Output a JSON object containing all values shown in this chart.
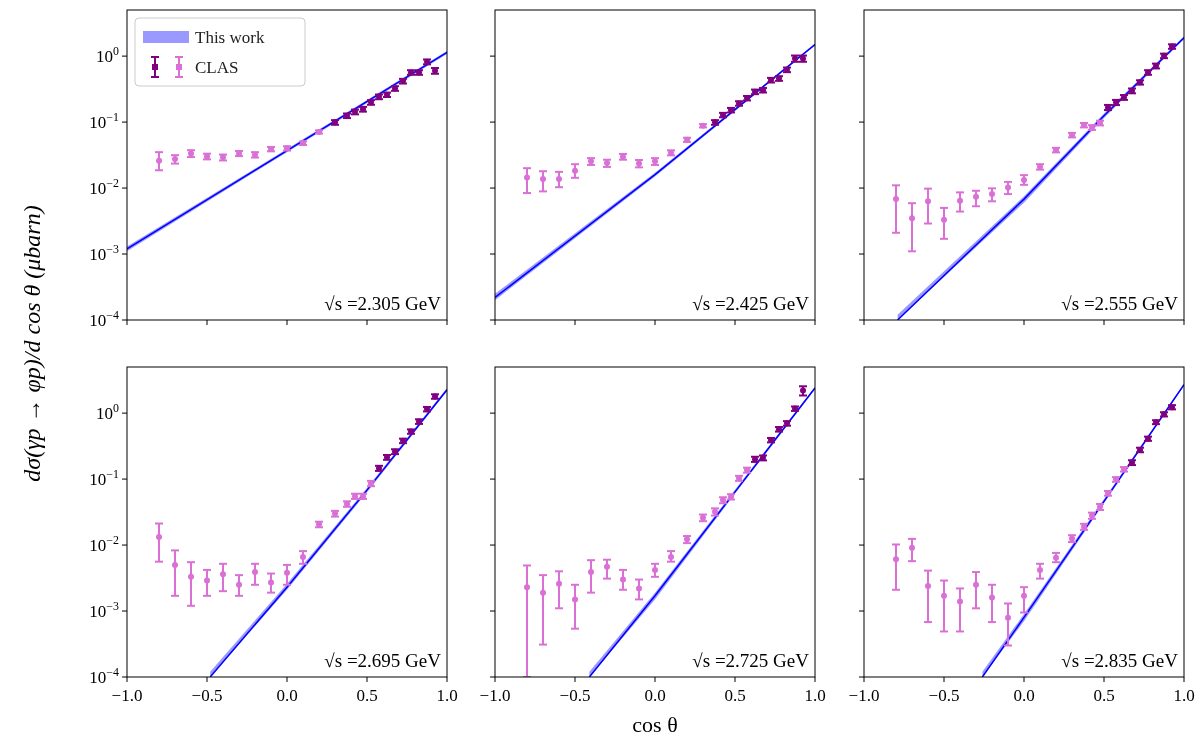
{
  "chart_data": [
    {
      "type": "scatter",
      "ylabel": "dσ(γp → φp)/d cos θ (μbarn)",
      "log": "y",
      "xlim": [
        -1,
        1
      ],
      "ylim": [
        0.0001,
        5
      ],
      "legend": "top left",
      "tick_labels": "y",
      "xticks": [
        {
          "value": -1,
          "label": null
        },
        {
          "value": -0.5,
          "label": null
        },
        {
          "value": 0,
          "label": null
        },
        {
          "value": 0.5,
          "label": null
        },
        {
          "value": 1,
          "label": null
        }
      ],
      "yticks": [
        {
          "value": 0.0001,
          "label": "10$^{−4}$"
        },
        {
          "value": 0.001,
          "label": "10$^{−3}$"
        },
        {
          "value": 0.01,
          "label": "10$^{−2}$"
        },
        {
          "value": 0.1,
          "label": "10$^{−1}$"
        },
        {
          "value": 1,
          "label": "10$^{0}$"
        }
      ],
      "annotations": [
        "√s =2.305 GeV"
      ],
      "series": [
        {
          "type": "line",
          "name": "This work",
          "color": "#0000ff",
          "x": [
            -1,
            0,
            1
          ],
          "values": [
            0.0012,
            0.037,
            1.14
          ],
          "lower": [
            0.0011,
            0.035,
            1.08
          ],
          "upper": [
            0.0013,
            0.039,
            1.2
          ]
        },
        {
          "name": "CLAS",
          "marker": "circle",
          "color": "#da70d6",
          "x": [
            -0.8,
            -0.7,
            -0.6,
            -0.5,
            -0.4,
            -0.3,
            -0.2,
            -0.1,
            0,
            0.1,
            0.2
          ],
          "values": [
            0.026,
            0.0275,
            0.0335,
            0.0302,
            0.0292,
            0.0335,
            0.032,
            0.039,
            0.04,
            0.048,
            0.071
          ],
          "errors": [
            [
              0.0186,
              0.035
            ],
            0.004,
            0.004,
            0.003,
            0.003,
            0.003,
            0.003,
            0.003,
            0.003,
            0.003,
            0.004
          ]
        },
        {
          "marker": "circle",
          "color": "#800080",
          "x": [
            0.3,
            0.375,
            0.425,
            0.475,
            0.525,
            0.575,
            0.625,
            0.675,
            0.725,
            0.775,
            0.825,
            0.875,
            0.925
          ],
          "values": [
            0.099,
            0.125,
            0.143,
            0.157,
            0.199,
            0.242,
            0.26,
            0.324,
            0.418,
            0.566,
            0.566,
            0.82,
            0.6
          ],
          "errors": [
            0.008,
            0.01,
            0.012,
            0.013,
            0.016,
            0.02,
            0.02,
            0.026,
            0.034,
            0.045,
            0.045,
            0.07,
            0.06
          ]
        }
      ]
    },
    {
      "type": "scatter",
      "log": "y",
      "xlim": [
        -1,
        1
      ],
      "ylim": [
        0.0001,
        5
      ],
      "tick_labels": false,
      "xticks": [
        {
          "value": -1,
          "label": null
        },
        {
          "value": -0.5,
          "label": null
        },
        {
          "value": 0,
          "label": null
        },
        {
          "value": 0.5,
          "label": null
        },
        {
          "value": 1,
          "label": null
        }
      ],
      "yticks": [
        {
          "value": 0.0001,
          "label": null
        },
        {
          "value": 0.001,
          "label": null
        },
        {
          "value": 0.01,
          "label": null
        },
        {
          "value": 0.1,
          "label": null
        },
        {
          "value": 1,
          "label": null
        }
      ],
      "annotations": [
        "√s =2.425 GeV"
      ],
      "series": [
        {
          "type": "line",
          "color": "#0000ff",
          "x": [
            -1,
            0,
            1
          ],
          "values": [
            0.00022,
            0.016,
            1.5
          ],
          "lower": [
            0.0002,
            0.015,
            1.45
          ],
          "upper": [
            0.00025,
            0.017,
            1.55
          ]
        },
        {
          "marker": "circle",
          "color": "#da70d6",
          "x": [
            -0.8,
            -0.7,
            -0.6,
            -0.5,
            -0.4,
            -0.3,
            -0.2,
            -0.1,
            0,
            0.1,
            0.2,
            0.3
          ],
          "values": [
            0.0145,
            0.0137,
            0.0137,
            0.0183,
            0.0254,
            0.0239,
            0.0299,
            0.0236,
            0.0254,
            0.0343,
            0.054,
            0.088
          ],
          "errors": [
            [
              0.0084,
              0.02
            ],
            [
              0.0089,
              0.018
            ],
            [
              0.0103,
              0.0176
            ],
            [
              0.0143,
              0.023
            ],
            0.003,
            0.003,
            0.003,
            0.003,
            0.003,
            0.003,
            0.004,
            0.005
          ]
        },
        {
          "marker": "circle",
          "color": "#800080",
          "x": [
            0.375,
            0.425,
            0.475,
            0.525,
            0.575,
            0.625,
            0.675,
            0.725,
            0.775,
            0.825,
            0.875,
            0.925
          ],
          "values": [
            0.099,
            0.128,
            0.152,
            0.192,
            0.231,
            0.288,
            0.305,
            0.433,
            0.459,
            0.621,
            0.92,
            0.92
          ],
          "errors": [
            0.008,
            0.01,
            0.012,
            0.015,
            0.018,
            0.023,
            0.024,
            0.035,
            0.037,
            0.05,
            0.1,
            0.1
          ]
        }
      ]
    },
    {
      "type": "scatter",
      "log": "y",
      "xlim": [
        -1,
        1
      ],
      "ylim": [
        0.0001,
        5
      ],
      "tick_labels": false,
      "xticks": [
        {
          "value": -1,
          "label": null
        },
        {
          "value": -0.5,
          "label": null
        },
        {
          "value": 0,
          "label": null
        },
        {
          "value": 0.5,
          "label": null
        },
        {
          "value": 1,
          "label": null
        }
      ],
      "yticks": [
        {
          "value": 0.0001,
          "label": null
        },
        {
          "value": 0.001,
          "label": null
        },
        {
          "value": 0.01,
          "label": null
        },
        {
          "value": 0.1,
          "label": null
        },
        {
          "value": 1,
          "label": null
        }
      ],
      "annotations": [
        "√s =2.555 GeV"
      ],
      "series": [
        {
          "type": "line",
          "color": "#0000ff",
          "x": [
            -0.79,
            0,
            0.5,
            1
          ],
          "values": [
            0.0001,
            0.0068,
            0.125,
            1.9
          ],
          "lower": [
            0.0001,
            0.006,
            0.115,
            1.8
          ],
          "upper": [
            0.00012,
            0.0075,
            0.135,
            2.0
          ]
        },
        {
          "marker": "circle",
          "color": "#da70d6",
          "x": [
            -0.8,
            -0.7,
            -0.6,
            -0.5,
            -0.4,
            -0.3,
            -0.2,
            -0.1,
            0,
            0.1,
            0.2,
            0.3,
            0.375,
            0.425,
            0.475
          ],
          "values": [
            0.0068,
            0.0035,
            0.0063,
            0.0033,
            0.0064,
            0.0074,
            0.0081,
            0.0102,
            0.0132,
            0.021,
            0.0377,
            0.0636,
            0.09,
            0.083,
            0.097
          ],
          "errors": [
            [
              0.0021,
              0.011
            ],
            [
              0.0011,
              0.0059
            ],
            [
              0.0029,
              0.0098
            ],
            [
              0.0017,
              0.005
            ],
            [
              0.0044,
              0.0086
            ],
            [
              0.0053,
              0.0091
            ],
            [
              0.0063,
              0.0099
            ],
            [
              0.0081,
              0.0124
            ],
            [
              0.0112,
              0.0157
            ],
            0.002,
            0.003,
            0.005,
            0.007,
            0.007,
            0.008
          ]
        },
        {
          "marker": "circle",
          "color": "#800080",
          "x": [
            0.525,
            0.575,
            0.625,
            0.675,
            0.725,
            0.775,
            0.825,
            0.875,
            0.925
          ],
          "values": [
            0.167,
            0.199,
            0.237,
            0.298,
            0.4,
            0.566,
            0.71,
            1.01,
            1.4
          ],
          "errors": [
            0.015,
            0.018,
            0.02,
            0.025,
            0.03,
            0.045,
            0.06,
            0.08,
            0.11
          ]
        }
      ]
    },
    {
      "type": "scatter",
      "log": "y",
      "xlim": [
        -1,
        1
      ],
      "ylim": [
        0.0001,
        5
      ],
      "xticks": [
        {
          "value": -1,
          "label": "−1.0"
        },
        {
          "value": -0.5,
          "label": "−0.5"
        },
        {
          "value": 0,
          "label": "0.0"
        },
        {
          "value": 0.5,
          "label": "0.5"
        },
        {
          "value": 1,
          "label": "1.0"
        }
      ],
      "yticks": [
        {
          "value": 0.0001,
          "label": "10$^{−4}$"
        },
        {
          "value": 0.001,
          "label": "10$^{−3}$"
        },
        {
          "value": 0.01,
          "label": "10$^{−2}$"
        },
        {
          "value": 0.1,
          "label": "10$^{−1}$"
        },
        {
          "value": 1,
          "label": "10$^{0}$"
        }
      ],
      "annotations": [
        "√s =2.695 GeV"
      ],
      "series": [
        {
          "type": "line",
          "color": "#0000ff",
          "x": [
            -0.48,
            0,
            0.5,
            1
          ],
          "values": [
            0.0001,
            0.0023,
            0.068,
            2.26
          ],
          "lower": [
            0.0001,
            0.0021,
            0.063,
            2.15
          ],
          "upper": [
            0.00012,
            0.0026,
            0.073,
            2.4
          ]
        },
        {
          "marker": "circle",
          "color": "#da70d6",
          "x": [
            -0.8,
            -0.7,
            -0.6,
            -0.5,
            -0.4,
            -0.3,
            -0.2,
            -0.1,
            0,
            0.1,
            0.2,
            0.3,
            0.375,
            0.425,
            0.475,
            0.525
          ],
          "values": [
            0.0133,
            0.005,
            0.0033,
            0.0029,
            0.0036,
            0.0025,
            0.0039,
            0.0027,
            0.0038,
            0.0066,
            0.0206,
            0.03,
            0.042,
            0.055,
            0.055,
            0.086
          ],
          "errors": [
            [
              0.0056,
              0.0212
            ],
            [
              0.0017,
              0.0083
            ],
            [
              0.0012,
              0.0055
            ],
            [
              0.0017,
              0.0042
            ],
            [
              0.002,
              0.0052
            ],
            [
              0.0017,
              0.0035
            ],
            [
              0.0025,
              0.0052
            ],
            [
              0.0019,
              0.0037
            ],
            [
              0.0025,
              0.005
            ],
            [
              0.0052,
              0.0081
            ],
            0.002,
            0.003,
            0.004,
            0.005,
            0.005,
            0.008
          ]
        },
        {
          "marker": "circle",
          "color": "#800080",
          "x": [
            0.575,
            0.625,
            0.675,
            0.725,
            0.775,
            0.825,
            0.875,
            0.925
          ],
          "values": [
            0.146,
            0.214,
            0.261,
            0.38,
            0.526,
            0.746,
            1.15,
            1.79
          ],
          "errors": [
            0.013,
            0.018,
            0.022,
            0.03,
            0.04,
            0.06,
            0.09,
            0.14
          ]
        }
      ]
    },
    {
      "type": "scatter",
      "xlabel": "cos θ",
      "log": "y",
      "xlim": [
        -1,
        1
      ],
      "ylim": [
        0.0001,
        5
      ],
      "tick_labels": "x",
      "xticks": [
        {
          "value": -1,
          "label": "−1.0"
        },
        {
          "value": -0.5,
          "label": "−0.5"
        },
        {
          "value": 0,
          "label": "0.0"
        },
        {
          "value": 0.5,
          "label": "0.5"
        },
        {
          "value": 1,
          "label": "1.0"
        }
      ],
      "yticks": [
        {
          "value": 0.0001,
          "label": null
        },
        {
          "value": 0.001,
          "label": null
        },
        {
          "value": 0.01,
          "label": null
        },
        {
          "value": 0.1,
          "label": null
        },
        {
          "value": 1,
          "label": null
        }
      ],
      "annotations": [
        "√s =2.725 GeV"
      ],
      "series": [
        {
          "type": "line",
          "color": "#0000ff",
          "x": [
            -0.41,
            0,
            0.5,
            1
          ],
          "values": [
            0.0001,
            0.0017,
            0.064,
            2.4
          ],
          "lower": [
            0.0001,
            0.0015,
            0.06,
            2.3
          ],
          "upper": [
            0.00012,
            0.0019,
            0.069,
            2.5
          ]
        },
        {
          "marker": "circle",
          "color": "#da70d6",
          "x": [
            -0.8,
            -0.7,
            -0.6,
            -0.5,
            -0.4,
            -0.3,
            -0.2,
            -0.1,
            0,
            0.1,
            0.2,
            0.3,
            0.375,
            0.425,
            0.475,
            0.525,
            0.575
          ],
          "values": [
            0.0023,
            0.0019,
            0.0026,
            0.0015,
            0.0039,
            0.0047,
            0.003,
            0.0022,
            0.0042,
            0.0066,
            0.0122,
            0.026,
            0.032,
            0.048,
            0.054,
            0.103,
            0.137
          ],
          "errors": [
            [
              0.0001,
              0.0049
            ],
            [
              0.00031,
              0.0035
            ],
            [
              0.0011,
              0.004
            ],
            [
              0.00054,
              0.0025
            ],
            [
              0.0019,
              0.0059
            ],
            [
              0.0031,
              0.006
            ],
            [
              0.0021,
              0.0042
            ],
            [
              0.0015,
              0.003
            ],
            [
              0.0033,
              0.0052
            ],
            [
              0.0056,
              0.0081
            ],
            0.0015,
            0.003,
            0.004,
            0.005,
            0.005,
            0.009,
            0.012
          ]
        },
        {
          "marker": "circle",
          "color": "#800080",
          "x": [
            0.625,
            0.675,
            0.725,
            0.775,
            0.825,
            0.875,
            0.925
          ],
          "values": [
            0.2,
            0.21,
            0.39,
            0.57,
            0.7,
            1.17,
            2.2
          ],
          "errors": [
            0.018,
            0.018,
            0.03,
            0.045,
            0.055,
            0.09,
            0.35
          ]
        }
      ]
    },
    {
      "type": "scatter",
      "log": "y",
      "xlim": [
        -1,
        1
      ],
      "ylim": [
        0.0001,
        5
      ],
      "tick_labels": "x",
      "xticks": [
        {
          "value": -1,
          "label": "−1.0"
        },
        {
          "value": -0.5,
          "label": "−0.5"
        },
        {
          "value": 0,
          "label": "0.0"
        },
        {
          "value": 0.5,
          "label": "0.5"
        },
        {
          "value": 1,
          "label": "1.0"
        }
      ],
      "yticks": [
        {
          "value": 0.0001,
          "label": null
        },
        {
          "value": 0.001,
          "label": null
        },
        {
          "value": 0.01,
          "label": null
        },
        {
          "value": 0.1,
          "label": null
        },
        {
          "value": 1,
          "label": null
        }
      ],
      "annotations": [
        "√s =2.835 GeV"
      ],
      "series": [
        {
          "type": "line",
          "color": "#0000ff",
          "x": [
            -0.26,
            0,
            0.5,
            1
          ],
          "values": [
            0.0001,
            0.0008,
            0.046,
            2.7
          ],
          "lower": [
            0.0001,
            0.0007,
            0.043,
            2.6
          ],
          "upper": [
            0.00012,
            0.0009,
            0.05,
            2.8
          ]
        },
        {
          "marker": "circle",
          "color": "#da70d6",
          "x": [
            -0.8,
            -0.7,
            -0.6,
            -0.5,
            -0.4,
            -0.3,
            -0.2,
            -0.1,
            0,
            0.1,
            0.2,
            0.3,
            0.375,
            0.425,
            0.475,
            0.525,
            0.575,
            0.625
          ],
          "values": [
            0.0061,
            0.0091,
            0.0024,
            0.0017,
            0.0014,
            0.0025,
            0.0016,
            0.00079,
            0.0017,
            0.0042,
            0.0064,
            0.0126,
            0.019,
            0.028,
            0.038,
            0.061,
            0.099,
            0.141
          ],
          "errors": [
            [
              0.0021,
              0.0102
            ],
            [
              0.0057,
              0.0124
            ],
            [
              0.00068,
              0.0041
            ],
            [
              0.00049,
              0.0029
            ],
            [
              0.00049,
              0.0022
            ],
            [
              0.0011,
              0.0039
            ],
            [
              0.00068,
              0.0025
            ],
            [
              0.0003,
              0.0013
            ],
            [
              0.00095,
              0.0023
            ],
            [
              0.0031,
              0.0052
            ],
            [
              0.0055,
              0.0076
            ],
            0.0015,
            0.002,
            0.003,
            0.004,
            0.005,
            0.008,
            0.011
          ]
        },
        {
          "marker": "circle",
          "color": "#800080",
          "x": [
            0.675,
            0.725,
            0.775,
            0.825,
            0.875,
            0.925
          ],
          "values": [
            0.178,
            0.277,
            0.41,
            0.73,
            0.96,
            1.23
          ],
          "errors": [
            0.015,
            0.022,
            0.03,
            0.05,
            0.07,
            0.09
          ]
        }
      ]
    }
  ]
}
